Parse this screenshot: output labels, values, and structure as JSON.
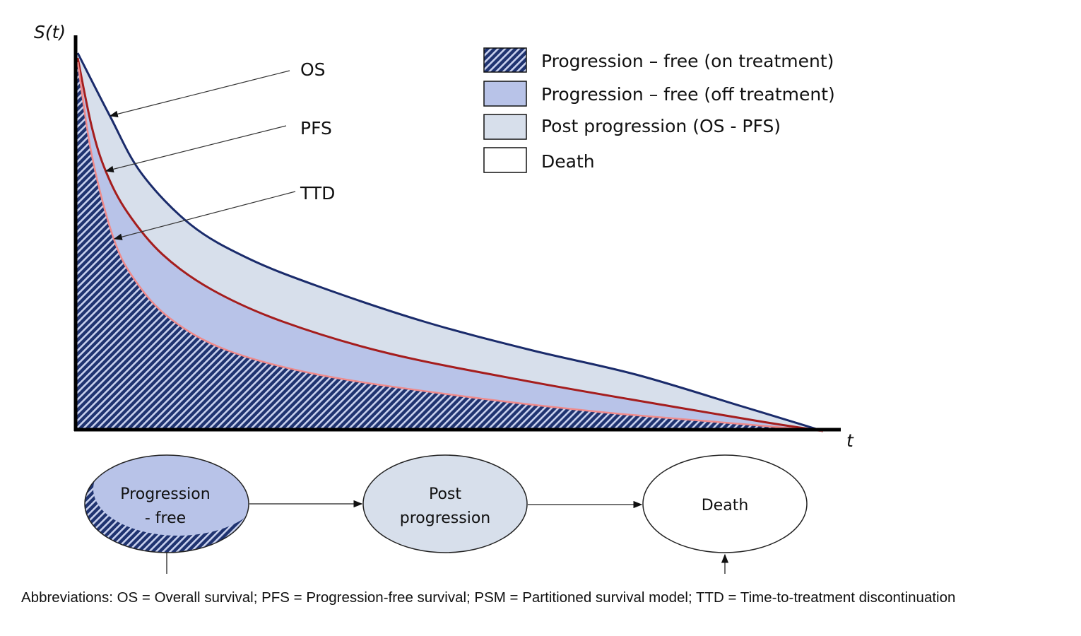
{
  "axes": {
    "y_label": "S(t)",
    "x_label": "t"
  },
  "curves": [
    {
      "label": "OS",
      "color": "#1a2b6b"
    },
    {
      "label": "PFS",
      "color": "#a51d1d"
    },
    {
      "label": "TTD",
      "color": "#f08a8a"
    }
  ],
  "legend": [
    {
      "label": "Progression – free (on treatment)",
      "fill": "hatched",
      "color": "#1f3370"
    },
    {
      "label": "Progression – free (off treatment)",
      "fill": "solid",
      "color": "#b8c3e8"
    },
    {
      "label": "Post progression (OS - PFS)",
      "fill": "solid",
      "color": "#d7dfeb"
    },
    {
      "label": "Death",
      "fill": "solid",
      "color": "#ffffff"
    }
  ],
  "states": [
    {
      "line1": "Progression",
      "line2": "- free"
    },
    {
      "line1": "Post",
      "line2": "progression"
    },
    {
      "line1": "Death",
      "line2": ""
    }
  ],
  "caption": "Abbreviations: OS = Overall survival; PFS = Progression-free survival; PSM = Partitioned survival model; TTD = Time-to-treatment discontinuation"
}
